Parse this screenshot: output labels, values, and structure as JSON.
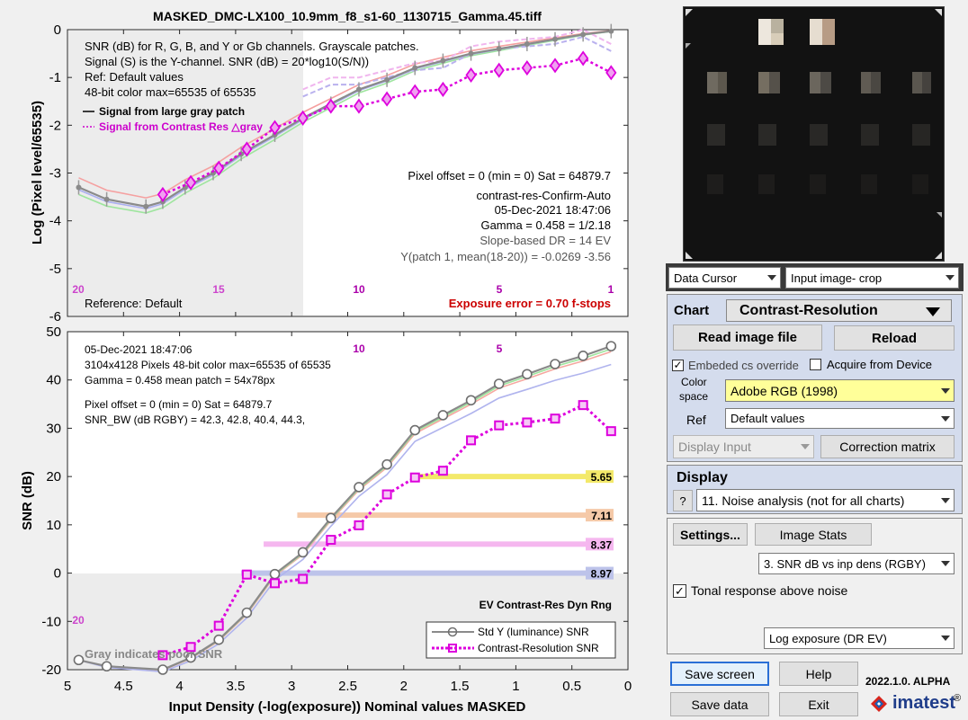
{
  "top_chart": {
    "title": "MASKED_DMC-LX100_10.9mm_f8_s1-60_1130715_Gamma.45.tiff",
    "ylabel": "Log (Pixel level/65535)",
    "y_ticks": [
      "0",
      "-1",
      "-2",
      "-3",
      "-4",
      "-5",
      "-6"
    ],
    "info_lines": [
      "SNR (dB) for R, G, B, and Y or Gb channels.  Grayscale patches.",
      "Signal (S) is the Y-channel.  SNR (dB) = 20*log10(S/N))",
      "Ref: Default values",
      "48-bit color  max=65535 of 65535"
    ],
    "legend": [
      "Signal from large gray patch",
      "Signal from Contrast Res △gray"
    ],
    "right_lines": [
      "Pixel offset = 0  (min = 0)  Sat = 64879.7",
      "contrast-res-Confirm-Auto",
      "05-Dec-2021 18:47:06",
      "Gamma = 0.458 = 1/2.18",
      "Slope-based DR = 14 EV",
      "Y(patch 1, mean(18-20)) = -0.0269  -3.56"
    ],
    "patch_labels": [
      "20",
      "15",
      "10",
      "5",
      "1"
    ],
    "reference": "Reference: Default",
    "exposure_error": "Exposure error = 0.70 f-stops"
  },
  "bottom_chart": {
    "ylabel": "SNR (dB)",
    "xlabel": "Input Density (-log(exposure))    Nominal values    MASKED",
    "y_ticks": [
      "50",
      "40",
      "30",
      "20",
      "10",
      "0",
      "-10",
      "-20"
    ],
    "x_ticks": [
      "5",
      "4.5",
      "4",
      "3.5",
      "3",
      "2.5",
      "2",
      "1.5",
      "1",
      "0.5",
      "0"
    ],
    "info_lines": [
      "05-Dec-2021 18:47:06",
      "3104x4128 Pixels   48-bit color  max=65535 of 65535",
      "Gamma = 0.458    mean patch = 54x78px",
      "Pixel offset = 0  (min = 0)  Sat = 64879.7",
      "SNR_BW (dB RGBY) = 42.3, 42.8, 40.4, 44.3,"
    ],
    "patch_labels": [
      "10",
      "5",
      "20"
    ],
    "dr_title": "EV Contrast-Res Dyn Rng",
    "dr_values": [
      "5.65",
      "7.11",
      "8.37",
      "8.97"
    ],
    "gray_note": "Gray indicates poor SNR",
    "legend": [
      "Std Y (luminance) SNR",
      "Contrast-Resolution SNR"
    ]
  },
  "chart_data": [
    {
      "type": "line",
      "title": "MASKED_DMC-LX100_10.9mm_f8_s1-60_1130715_Gamma.45.tiff",
      "xlabel": "Input Density (-log(exposure))",
      "ylabel": "Log (Pixel level/65535)",
      "xlim": [
        5,
        0
      ],
      "ylim": [
        -6,
        0
      ],
      "series": [
        {
          "name": "Signal from large gray patch",
          "x": [
            4.9,
            4.65,
            4.3,
            4.15,
            3.95,
            3.7,
            3.45,
            3.15,
            2.9,
            2.65,
            2.4,
            2.15,
            1.9,
            1.65,
            1.4,
            1.15,
            0.9,
            0.65,
            0.4,
            0.15
          ],
          "values": [
            -3.3,
            -3.55,
            -3.7,
            -3.6,
            -3.3,
            -3.0,
            -2.6,
            -2.2,
            -1.85,
            -1.55,
            -1.25,
            -1.05,
            -0.8,
            -0.65,
            -0.5,
            -0.4,
            -0.3,
            -0.2,
            -0.1,
            -0.03
          ]
        },
        {
          "name": "Signal from Contrast Res △gray",
          "x": [
            4.15,
            3.9,
            3.65,
            3.4,
            3.15,
            2.9,
            2.65,
            2.4,
            2.15,
            1.9,
            1.65,
            1.4,
            1.15,
            0.9,
            0.65,
            0.4,
            0.15
          ],
          "values": [
            -3.45,
            -3.2,
            -2.9,
            -2.5,
            -2.05,
            -1.85,
            -1.6,
            -1.6,
            -1.45,
            -1.3,
            -1.25,
            -0.95,
            -0.85,
            -0.8,
            -0.75,
            -0.6,
            -0.9
          ]
        }
      ]
    },
    {
      "type": "line",
      "xlabel": "Input Density (-log(exposure))    Nominal values    MASKED",
      "ylabel": "SNR (dB)",
      "xlim": [
        5,
        0
      ],
      "ylim": [
        -20,
        50
      ],
      "series": [
        {
          "name": "Std Y (luminance) SNR",
          "x": [
            4.9,
            4.65,
            4.15,
            3.9,
            3.65,
            3.4,
            3.15,
            2.9,
            2.65,
            2.4,
            2.15,
            1.9,
            1.65,
            1.4,
            1.15,
            0.9,
            0.65,
            0.4,
            0.15
          ],
          "values": [
            -18,
            -19.3,
            -20,
            -17.5,
            -13.8,
            -8.2,
            -0.2,
            4.3,
            11.4,
            17.8,
            22.5,
            29.6,
            32.7,
            35.8,
            39.2,
            41.2,
            43.3,
            45,
            47
          ]
        },
        {
          "name": "Contrast-Resolution SNR",
          "x": [
            4.15,
            3.9,
            3.65,
            3.4,
            3.15,
            2.9,
            2.65,
            2.4,
            2.15,
            1.9,
            1.65,
            1.4,
            1.15,
            0.9,
            0.65,
            0.4,
            0.15
          ],
          "values": [
            -17,
            -15.3,
            -10.9,
            -0.3,
            -2.1,
            -1.2,
            6.9,
            9.9,
            16.3,
            19.8,
            21.2,
            27.5,
            30.6,
            31.2,
            32,
            34.8,
            29.4
          ]
        }
      ],
      "dynamic_range_ev": {
        "values": [
          5.65,
          7.11,
          8.37,
          8.97
        ],
        "snr_levels_db": [
          20,
          12,
          6,
          0
        ]
      }
    }
  ],
  "right_panel": {
    "data_cursor": "Data Cursor",
    "view_select": "Input image- crop",
    "chart_label": "Chart",
    "chart_type": "Contrast-Resolution",
    "read_image": "Read image file",
    "reload": "Reload",
    "embedded_cs": "Embeded cs override",
    "acquire": "Acquire from Device",
    "color_space_label1": "Color",
    "color_space_label2": "space",
    "color_space": "Adobe RGB (1998)",
    "ref_label": "Ref",
    "ref_value": "Default values",
    "display_input": "Display Input",
    "correction_matrix": "Correction matrix",
    "display_label": "Display",
    "help_q": "?",
    "display_value": "11. Noise analysis (not for all charts)",
    "settings": "Settings...",
    "image_stats": "Image Stats",
    "plot_select": "3.  SNR dB vs inp dens (RGBY)",
    "tonal_response": "Tonal response above noise",
    "x_axis_select": "Log exposure (DR EV)",
    "save_screen": "Save screen",
    "help": "Help",
    "save_data": "Save data",
    "exit": "Exit",
    "version": "2022.1.0. ALPHA",
    "brand": "imatest",
    "reg_mark": "®"
  }
}
